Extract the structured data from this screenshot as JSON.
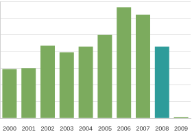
{
  "chart_data": {
    "type": "bar",
    "categories": [
      "2000",
      "2001",
      "2002",
      "2003",
      "2004",
      "2005",
      "2006",
      "2007",
      "2008",
      "2009"
    ],
    "values": [
      2.95,
      3.0,
      4.35,
      3.95,
      4.3,
      5.0,
      6.65,
      6.2,
      4.3,
      0.08
    ],
    "colors": [
      "#7cab5e",
      "#7cab5e",
      "#7cab5e",
      "#7cab5e",
      "#7cab5e",
      "#7cab5e",
      "#7cab5e",
      "#7cab5e",
      "#2e9c9a",
      "#7cab5e"
    ],
    "ylim": [
      0,
      7
    ],
    "yticks": [
      0,
      1,
      2,
      3,
      4,
      5,
      6,
      7
    ],
    "grid": true,
    "tick_labels": "x"
  }
}
